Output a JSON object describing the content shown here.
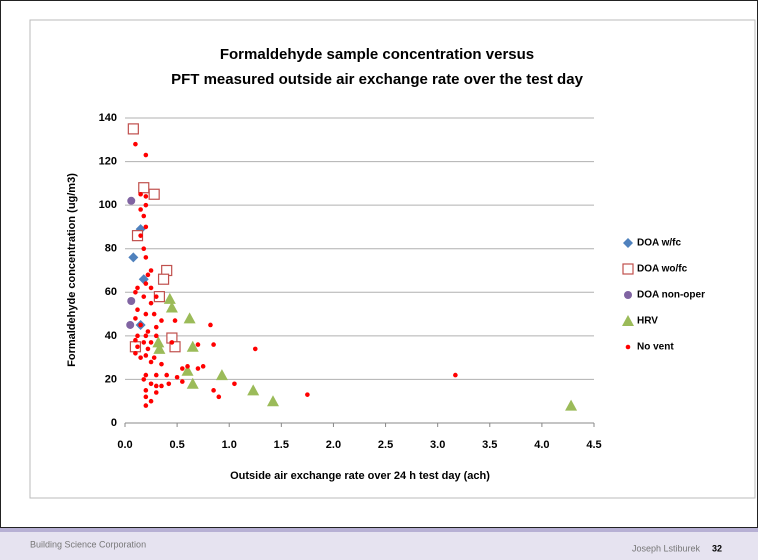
{
  "chart_data": {
    "type": "scatter",
    "title_lines": [
      "Formaldehyde sample concentration versus",
      "PFT measured outside air exchange rate over the test day"
    ],
    "x_label": "Outside air exchange rate over 24 h test day (ach)",
    "y_label": "Formaldehyde concentration (ug/m3)",
    "xlim": [
      0,
      4.5
    ],
    "xticks": [
      {
        "value": 0,
        "label": "0.0"
      },
      {
        "value": 0.5,
        "label": "0.5"
      },
      {
        "value": 1,
        "label": "1.0"
      },
      {
        "value": 1.5,
        "label": "1.5"
      },
      {
        "value": 2,
        "label": "2.0"
      },
      {
        "value": 2.5,
        "label": "2.5"
      },
      {
        "value": 3,
        "label": "3.0"
      },
      {
        "value": 3.5,
        "label": "3.5"
      },
      {
        "value": 4,
        "label": "4.0"
      },
      {
        "value": 4.5,
        "label": "4.5"
      }
    ],
    "ylim": [
      0,
      140
    ],
    "yticks": [
      0,
      20,
      40,
      60,
      80,
      100,
      120,
      140
    ],
    "grid": true,
    "legend": "right",
    "series": [
      {
        "name": "DOA w/fc",
        "color": "#4f81bd",
        "marker": "diamond",
        "x": [
          0.08,
          0.15,
          0.18,
          0.15
        ],
        "values": [
          76,
          89,
          66,
          45
        ]
      },
      {
        "name": "DOA wo/fc",
        "color": "#c0504d",
        "marker": "open-square",
        "x": [
          0.08,
          0.18,
          0.28,
          0.12,
          0.4,
          0.37,
          0.33,
          0.45,
          0.48,
          0.1
        ],
        "values": [
          135,
          108,
          105,
          86,
          70,
          66,
          58,
          39,
          35,
          35
        ]
      },
      {
        "name": "DOA non-oper",
        "color": "#8064a2",
        "marker": "circle",
        "x": [
          0.06,
          0.06,
          0.05
        ],
        "values": [
          102,
          56,
          45
        ]
      },
      {
        "name": "HRV",
        "color": "#9bbb59",
        "marker": "triangle",
        "x": [
          0.43,
          0.45,
          0.62,
          0.32,
          0.33,
          0.65,
          0.6,
          0.65,
          0.93,
          1.23,
          1.42,
          4.28
        ],
        "values": [
          57,
          53,
          48,
          37,
          34,
          35,
          24,
          18,
          22,
          15,
          10,
          8
        ]
      },
      {
        "name": "No vent",
        "color": "#ff0000",
        "marker": "dot",
        "x": [
          0.1,
          0.2,
          0.15,
          0.2,
          0.2,
          0.15,
          0.18,
          0.2,
          0.15,
          0.18,
          0.2,
          0.25,
          0.22,
          0.2,
          0.12,
          0.25,
          0.1,
          0.18,
          0.3,
          0.25,
          0.12,
          0.2,
          0.28,
          0.1,
          0.35,
          0.48,
          0.15,
          0.3,
          0.22,
          0.12,
          0.2,
          0.3,
          0.1,
          0.18,
          0.25,
          0.45,
          0.12,
          0.22,
          0.7,
          0.85,
          0.1,
          0.2,
          0.28,
          0.15,
          0.25,
          0.35,
          0.55,
          0.7,
          0.82,
          0.2,
          0.3,
          0.4,
          0.5,
          0.18,
          0.25,
          0.3,
          0.35,
          0.42,
          0.55,
          0.2,
          0.3,
          0.2,
          0.25,
          0.2,
          0.85,
          1.05,
          0.75,
          1.25,
          1.75,
          3.17,
          0.6,
          0.9
        ],
        "values": [
          128,
          123,
          105,
          104,
          100,
          98,
          95,
          90,
          86,
          80,
          76,
          70,
          68,
          64,
          62,
          62,
          60,
          58,
          58,
          55,
          52,
          50,
          50,
          48,
          47,
          47,
          45,
          44,
          42,
          40,
          40,
          40,
          38,
          37,
          37,
          37,
          35,
          34,
          36,
          36,
          32,
          31,
          30,
          30,
          28,
          27,
          25,
          25,
          45,
          22,
          22,
          22,
          21,
          20,
          18,
          17,
          17,
          18,
          19,
          15,
          14,
          12,
          10,
          8,
          15,
          18,
          26,
          34,
          13,
          22,
          26,
          12
        ]
      }
    ]
  },
  "footer": {
    "company": "Building Science Corporation",
    "author": "Joseph Lstiburek",
    "page": "32"
  }
}
